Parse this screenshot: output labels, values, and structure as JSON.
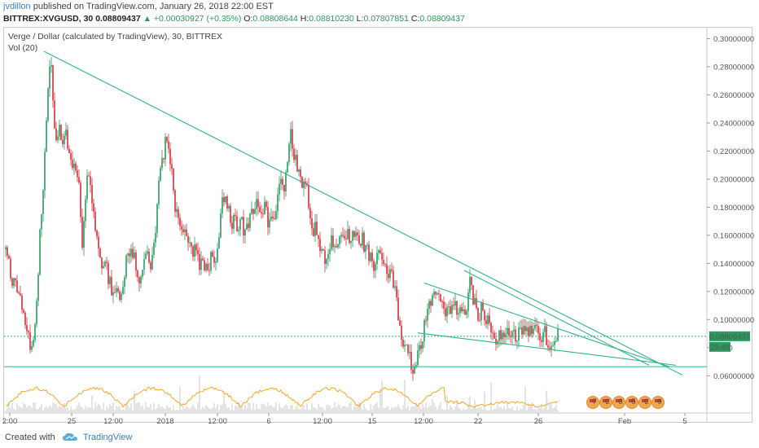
{
  "header": {
    "user": "jvdillon",
    "published": "published on TradingView.com, January 26, 2018 22:00 EST"
  },
  "ohlc": {
    "symbol": "BITTREX:XVGUSD, 30",
    "last": "0.08809437",
    "change": "▲ +0.00030927 (+0.35%)",
    "o_label": "O:",
    "o": "0.08808644",
    "h_label": "H:",
    "h": "0.08810230",
    "l_label": "L:",
    "l": "0.07807851",
    "c_label": "C:",
    "c": "0.08809437"
  },
  "legend": {
    "title": "Verge / Dollar (calculated by TradingView), 30, BITTREX",
    "volume": "Vol (20)"
  },
  "footer": {
    "created": "Created with",
    "brand": "TradingView"
  },
  "colors": {
    "up": "#2a9a5d",
    "down": "#d32f3c",
    "trendline": "#2fb38a",
    "price_tag": "#2a9a5d",
    "volume": "#c8c8c8",
    "vol_ma": "#f5a623"
  },
  "chart_data": {
    "type": "candlestick",
    "y_axis": {
      "ticks": [
        "0.30000000",
        "0.28000000",
        "0.26000000",
        "0.24000000",
        "0.22000000",
        "0.20000000",
        "0.18000000",
        "0.16000000",
        "0.14000000",
        "0.12000000",
        "0.10000000",
        "0.080",
        "0.06000000"
      ],
      "range": [
        0.048,
        0.302
      ]
    },
    "x_axis": {
      "ticks": [
        "2:00",
        "25",
        "12:00",
        "2018",
        "12:00",
        "6",
        "12:00",
        "15",
        "12:00",
        "22",
        "26",
        "Feb",
        "5"
      ]
    },
    "price_tag": "0.08809437",
    "countdown": "29:49",
    "last_price": 0.0881,
    "horizontal_support": 0.0665,
    "events": [
      "7",
      "2",
      "3",
      "5",
      "2",
      "9"
    ],
    "price_path": [
      [
        0,
        0.15
      ],
      [
        4,
        0.14
      ],
      [
        10,
        0.125
      ],
      [
        16,
        0.118
      ],
      [
        20,
        0.105
      ],
      [
        26,
        0.09
      ],
      [
        32,
        0.078
      ],
      [
        38,
        0.115
      ],
      [
        42,
        0.16
      ],
      [
        47,
        0.2
      ],
      [
        50,
        0.245
      ],
      [
        53,
        0.275
      ],
      [
        55,
        0.29
      ],
      [
        58,
        0.25
      ],
      [
        62,
        0.23
      ],
      [
        66,
        0.235
      ],
      [
        70,
        0.22
      ],
      [
        74,
        0.23
      ],
      [
        78,
        0.215
      ],
      [
        82,
        0.21
      ],
      [
        86,
        0.205
      ],
      [
        90,
        0.195
      ],
      [
        94,
        0.15
      ],
      [
        97,
        0.18
      ],
      [
        100,
        0.205
      ],
      [
        104,
        0.19
      ],
      [
        108,
        0.175
      ],
      [
        112,
        0.16
      ],
      [
        116,
        0.145
      ],
      [
        120,
        0.14
      ],
      [
        124,
        0.135
      ],
      [
        128,
        0.125
      ],
      [
        132,
        0.12
      ],
      [
        136,
        0.118
      ],
      [
        140,
        0.115
      ],
      [
        144,
        0.12
      ],
      [
        148,
        0.14
      ],
      [
        152,
        0.15
      ],
      [
        156,
        0.145
      ],
      [
        160,
        0.14
      ],
      [
        164,
        0.13
      ],
      [
        168,
        0.135
      ],
      [
        172,
        0.15
      ],
      [
        176,
        0.14
      ],
      [
        180,
        0.14
      ],
      [
        184,
        0.165
      ],
      [
        188,
        0.2
      ],
      [
        192,
        0.215
      ],
      [
        196,
        0.225
      ],
      [
        200,
        0.218
      ],
      [
        203,
        0.21
      ],
      [
        206,
        0.19
      ],
      [
        210,
        0.175
      ],
      [
        214,
        0.165
      ],
      [
        218,
        0.16
      ],
      [
        222,
        0.158
      ],
      [
        226,
        0.155
      ],
      [
        230,
        0.15
      ],
      [
        234,
        0.145
      ],
      [
        238,
        0.14
      ],
      [
        242,
        0.138
      ],
      [
        246,
        0.135
      ],
      [
        250,
        0.14
      ],
      [
        254,
        0.145
      ],
      [
        258,
        0.14
      ],
      [
        262,
        0.16
      ],
      [
        266,
        0.185
      ],
      [
        270,
        0.19
      ],
      [
        274,
        0.175
      ],
      [
        278,
        0.17
      ],
      [
        282,
        0.168
      ],
      [
        286,
        0.165
      ],
      [
        290,
        0.17
      ],
      [
        294,
        0.16
      ],
      [
        298,
        0.17
      ],
      [
        302,
        0.175
      ],
      [
        306,
        0.18
      ],
      [
        310,
        0.18
      ],
      [
        314,
        0.178
      ],
      [
        318,
        0.182
      ],
      [
        322,
        0.17
      ],
      [
        326,
        0.175
      ],
      [
        330,
        0.175
      ],
      [
        334,
        0.19
      ],
      [
        338,
        0.195
      ],
      [
        342,
        0.195
      ],
      [
        346,
        0.215
      ],
      [
        350,
        0.23
      ],
      [
        354,
        0.218
      ],
      [
        358,
        0.21
      ],
      [
        362,
        0.2
      ],
      [
        366,
        0.195
      ],
      [
        370,
        0.19
      ],
      [
        374,
        0.175
      ],
      [
        378,
        0.165
      ],
      [
        382,
        0.165
      ],
      [
        386,
        0.15
      ],
      [
        390,
        0.145
      ],
      [
        394,
        0.14
      ],
      [
        398,
        0.155
      ],
      [
        402,
        0.155
      ],
      [
        406,
        0.15
      ],
      [
        410,
        0.16
      ],
      [
        414,
        0.16
      ],
      [
        418,
        0.16
      ],
      [
        422,
        0.16
      ],
      [
        426,
        0.158
      ],
      [
        430,
        0.158
      ],
      [
        434,
        0.157
      ],
      [
        438,
        0.156
      ],
      [
        442,
        0.15
      ],
      [
        446,
        0.145
      ],
      [
        450,
        0.14
      ],
      [
        454,
        0.14
      ],
      [
        458,
        0.145
      ],
      [
        462,
        0.14
      ],
      [
        466,
        0.135
      ],
      [
        470,
        0.13
      ],
      [
        474,
        0.13
      ],
      [
        478,
        0.12
      ],
      [
        482,
        0.1
      ],
      [
        486,
        0.085
      ],
      [
        490,
        0.08
      ],
      [
        494,
        0.08
      ],
      [
        498,
        0.07
      ],
      [
        502,
        0.065
      ],
      [
        506,
        0.075
      ],
      [
        510,
        0.085
      ],
      [
        514,
        0.095
      ],
      [
        518,
        0.105
      ],
      [
        522,
        0.115
      ],
      [
        526,
        0.118
      ],
      [
        530,
        0.116
      ],
      [
        534,
        0.112
      ],
      [
        538,
        0.11
      ],
      [
        542,
        0.105
      ],
      [
        546,
        0.108
      ],
      [
        550,
        0.11
      ],
      [
        554,
        0.107
      ],
      [
        558,
        0.108
      ],
      [
        562,
        0.108
      ],
      [
        566,
        0.11
      ],
      [
        570,
        0.125
      ],
      [
        574,
        0.115
      ],
      [
        578,
        0.105
      ],
      [
        582,
        0.105
      ],
      [
        586,
        0.108
      ],
      [
        590,
        0.1
      ],
      [
        594,
        0.1
      ],
      [
        598,
        0.09
      ],
      [
        602,
        0.088
      ],
      [
        606,
        0.088
      ],
      [
        610,
        0.09
      ],
      [
        614,
        0.09
      ],
      [
        618,
        0.088
      ],
      [
        622,
        0.092
      ],
      [
        626,
        0.09
      ],
      [
        630,
        0.09
      ],
      [
        634,
        0.09
      ],
      [
        638,
        0.092
      ],
      [
        642,
        0.09
      ],
      [
        646,
        0.092
      ],
      [
        650,
        0.091
      ],
      [
        654,
        0.09
      ],
      [
        658,
        0.088
      ],
      [
        662,
        0.09
      ],
      [
        666,
        0.08
      ],
      [
        670,
        0.085
      ],
      [
        674,
        0.088
      ],
      [
        678,
        0.0881
      ]
    ]
  }
}
